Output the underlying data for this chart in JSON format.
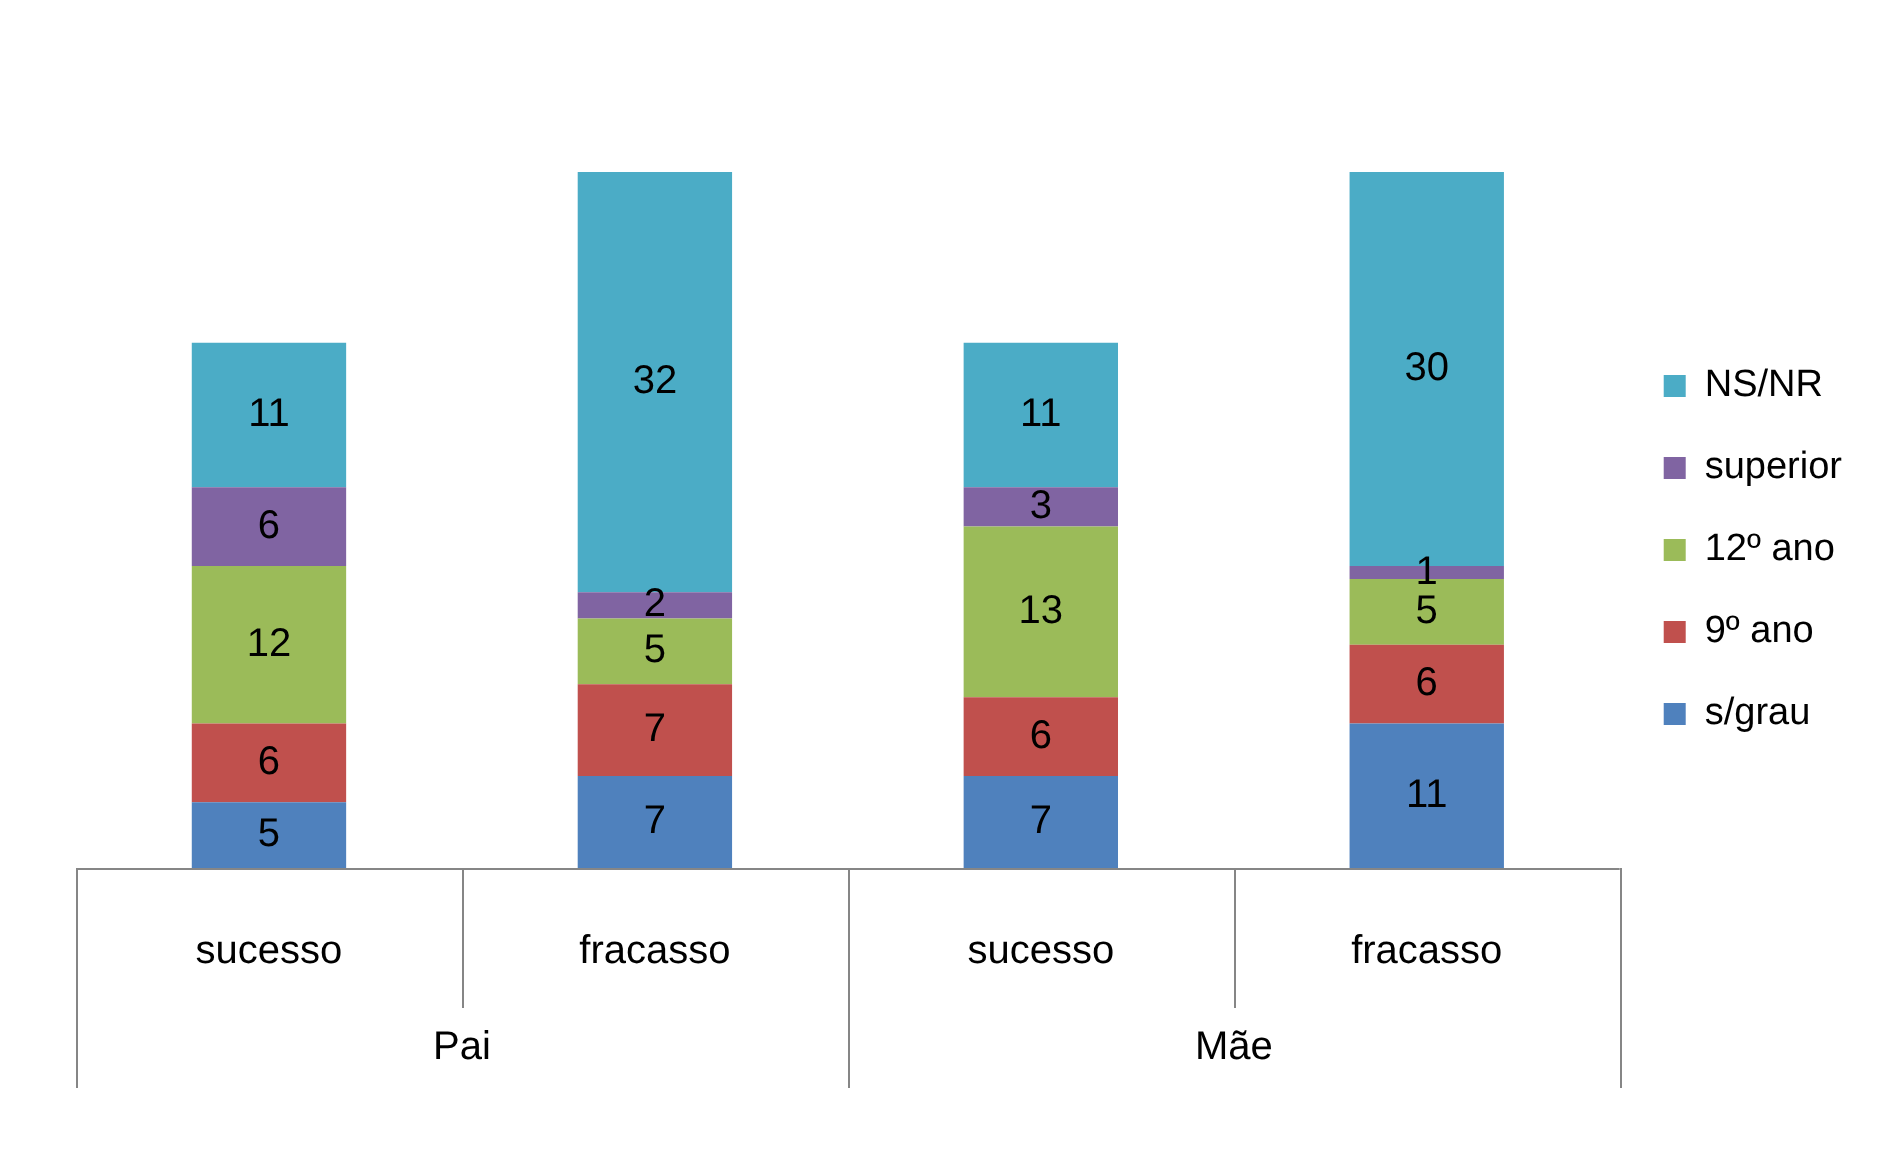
{
  "chart_data": {
    "type": "bar",
    "stacked": true,
    "data_labels": true,
    "legend": "right",
    "categories": [
      "sucesso",
      "fracasso",
      "sucesso",
      "fracasso"
    ],
    "annotations": [
      "Pai",
      "Mãe"
    ],
    "series": [
      {
        "name": "s/grau",
        "color": "#4f81bd",
        "values": [
          5,
          7,
          7,
          11
        ]
      },
      {
        "name": "9º ano",
        "color": "#c0504d",
        "values": [
          6,
          7,
          6,
          6
        ]
      },
      {
        "name": "12º ano",
        "color": "#9bbb59",
        "values": [
          12,
          5,
          13,
          5
        ]
      },
      {
        "name": "superior",
        "color": "#8064a2",
        "values": [
          6,
          2,
          3,
          1
        ]
      },
      {
        "name": "NS/NR",
        "color": "#4bacc6",
        "values": [
          11,
          32,
          11,
          30
        ]
      }
    ]
  }
}
